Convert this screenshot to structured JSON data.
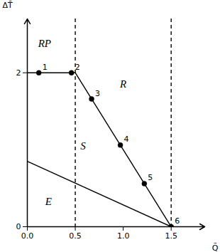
{
  "chart_data": {
    "type": "line",
    "xlabel": "Q̄",
    "ylabel": "ΔT̄",
    "xlim": [
      0,
      1.85
    ],
    "ylim": [
      0,
      2.7
    ],
    "xticks": [
      {
        "value": 0,
        "label": "0.0"
      },
      {
        "value": 0.5,
        "label": "0.5"
      },
      {
        "value": 1.0,
        "label": "1.0"
      },
      {
        "value": 1.5,
        "label": "1.5"
      }
    ],
    "yticks": [
      0,
      2
    ],
    "color": "#000000",
    "series": [
      {
        "type": "line",
        "x": [
          0,
          0.5
        ],
        "values": [
          2.0,
          2.0
        ],
        "line_style": "solid"
      },
      {
        "type": "line",
        "x": [
          0.5,
          1.5
        ],
        "values": [
          2.0,
          0.0
        ],
        "line_style": "solid"
      },
      {
        "type": "line",
        "x": [
          0.0,
          1.5
        ],
        "values": [
          0.85,
          0.0
        ],
        "line_style": "solid"
      },
      {
        "type": "vline",
        "x": [
          0.5,
          1.5
        ],
        "line_style": "dashed"
      },
      {
        "type": "scatter",
        "x": [
          0.12,
          0.46,
          0.67,
          0.97,
          1.22,
          1.5
        ],
        "values": [
          2.0,
          2.0,
          1.66,
          1.06,
          0.56,
          0.0
        ],
        "labels": [
          "1",
          "2",
          "3",
          "4",
          "5",
          "6"
        ],
        "marker": "circle"
      }
    ],
    "annotations": [
      {
        "x": 0.18,
        "y": 2.38,
        "text": "RP"
      },
      {
        "x": 1.0,
        "y": 1.85,
        "text": "R"
      },
      {
        "x": 0.58,
        "y": 1.05,
        "text": "S"
      },
      {
        "x": 0.22,
        "y": 0.33,
        "text": "E"
      }
    ]
  }
}
